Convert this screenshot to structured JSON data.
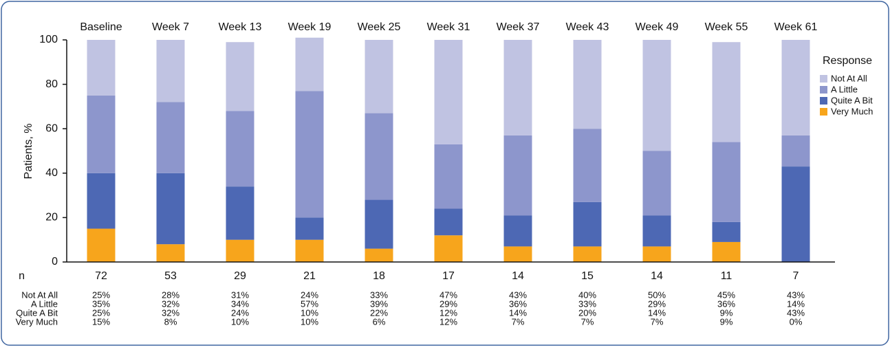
{
  "chart_data": {
    "type": "stacked_bar",
    "y_label": "Patients, %",
    "categories": [
      "Baseline",
      "Week 7",
      "Week 13",
      "Week 19",
      "Week 25",
      "Week 31",
      "Week 37",
      "Week 43",
      "Week 49",
      "Week 55",
      "Week 61"
    ],
    "legend_title": "Response",
    "series": [
      {
        "name": "Not At All",
        "color": "#c0c3e2",
        "values": [
          25,
          28,
          31,
          24,
          33,
          47,
          43,
          40,
          50,
          45,
          43
        ],
        "value_labels": [
          "25%",
          "28%",
          "31%",
          "24%",
          "33%",
          "47%",
          "43%",
          "40%",
          "50%",
          "45%",
          "43%"
        ]
      },
      {
        "name": "A Little",
        "color": "#8d96cc",
        "values": [
          35,
          32,
          34,
          57,
          39,
          29,
          36,
          33,
          29,
          36,
          14
        ],
        "value_labels": [
          "35%",
          "32%",
          "34%",
          "57%",
          "39%",
          "29%",
          "36%",
          "33%",
          "29%",
          "36%",
          "14%"
        ]
      },
      {
        "name": "Quite A Bit",
        "color": "#4d68b4",
        "values": [
          25,
          32,
          24,
          10,
          22,
          12,
          14,
          20,
          14,
          9,
          43
        ],
        "value_labels": [
          "25%",
          "32%",
          "24%",
          "10%",
          "22%",
          "12%",
          "14%",
          "20%",
          "14%",
          "9%",
          "43%"
        ]
      },
      {
        "name": "Very Much",
        "color": "#f7a51c",
        "values": [
          15,
          8,
          10,
          10,
          6,
          12,
          7,
          7,
          7,
          9,
          0
        ],
        "value_labels": [
          "15%",
          "8%",
          "10%",
          "10%",
          "6%",
          "12%",
          "7%",
          "7%",
          "7%",
          "9%",
          "0%"
        ]
      }
    ],
    "n_label": "n",
    "n": [
      72,
      53,
      29,
      21,
      18,
      17,
      14,
      15,
      14,
      11,
      7
    ],
    "ylim": [
      0,
      100
    ],
    "yticks": [
      0,
      20,
      40,
      60,
      80,
      100
    ],
    "grid": false
  }
}
